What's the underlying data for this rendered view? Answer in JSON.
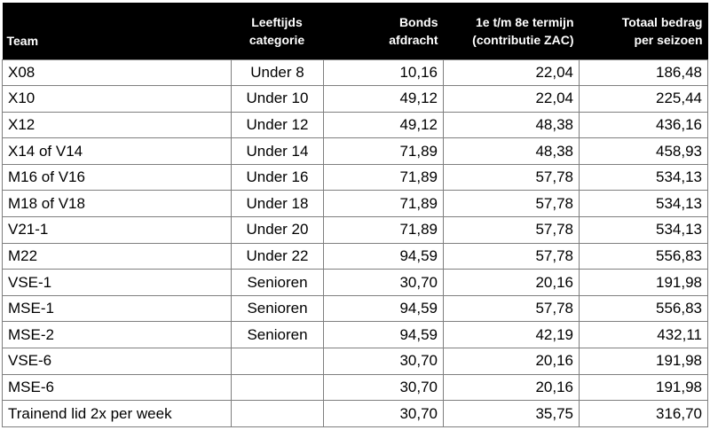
{
  "table": {
    "headers": {
      "team": "Team",
      "category_line1": "Leeftijds",
      "category_line2": "categorie",
      "bonds_line1": "Bonds",
      "bonds_line2": "afdracht",
      "termijn_line1": "1e t/m 8e termijn",
      "termijn_line2": "(contributie ZAC)",
      "totaal_line1": "Totaal bedrag",
      "totaal_line2": "per seizoen"
    },
    "rows": [
      {
        "team": "X08",
        "category": "Under 8",
        "bonds": "10,16",
        "termijn": "22,04",
        "totaal": "186,48"
      },
      {
        "team": "X10",
        "category": "Under 10",
        "bonds": "49,12",
        "termijn": "22,04",
        "totaal": "225,44"
      },
      {
        "team": "X12",
        "category": "Under 12",
        "bonds": "49,12",
        "termijn": "48,38",
        "totaal": "436,16"
      },
      {
        "team": "X14 of V14",
        "category": "Under 14",
        "bonds": "71,89",
        "termijn": "48,38",
        "totaal": "458,93"
      },
      {
        "team": "M16 of V16",
        "category": "Under 16",
        "bonds": "71,89",
        "termijn": "57,78",
        "totaal": "534,13"
      },
      {
        "team": "M18 of V18",
        "category": "Under 18",
        "bonds": "71,89",
        "termijn": "57,78",
        "totaal": "534,13"
      },
      {
        "team": "V21-1",
        "category": "Under 20",
        "bonds": "71,89",
        "termijn": "57,78",
        "totaal": "534,13"
      },
      {
        "team": "M22",
        "category": "Under 22",
        "bonds": "94,59",
        "termijn": "57,78",
        "totaal": "556,83"
      },
      {
        "team": "VSE-1",
        "category": "Senioren",
        "bonds": "30,70",
        "termijn": "20,16",
        "totaal": "191,98"
      },
      {
        "team": "MSE-1",
        "category": "Senioren",
        "bonds": "94,59",
        "termijn": "57,78",
        "totaal": "556,83"
      },
      {
        "team": "MSE-2",
        "category": "Senioren",
        "bonds": "94,59",
        "termijn": "42,19",
        "totaal": "432,11"
      },
      {
        "team": "VSE-6",
        "category": "",
        "bonds": "30,70",
        "termijn": "20,16",
        "totaal": "191,98"
      },
      {
        "team": "MSE-6",
        "category": "",
        "bonds": "30,70",
        "termijn": "20,16",
        "totaal": "191,98"
      },
      {
        "team": "Trainend lid 2x per week",
        "category": "",
        "bonds": "30,70",
        "termijn": "35,75",
        "totaal": "316,70"
      }
    ]
  },
  "colors": {
    "header_bg": "#000000",
    "header_text": "#ffffff",
    "grid": "#7f7f7f"
  }
}
